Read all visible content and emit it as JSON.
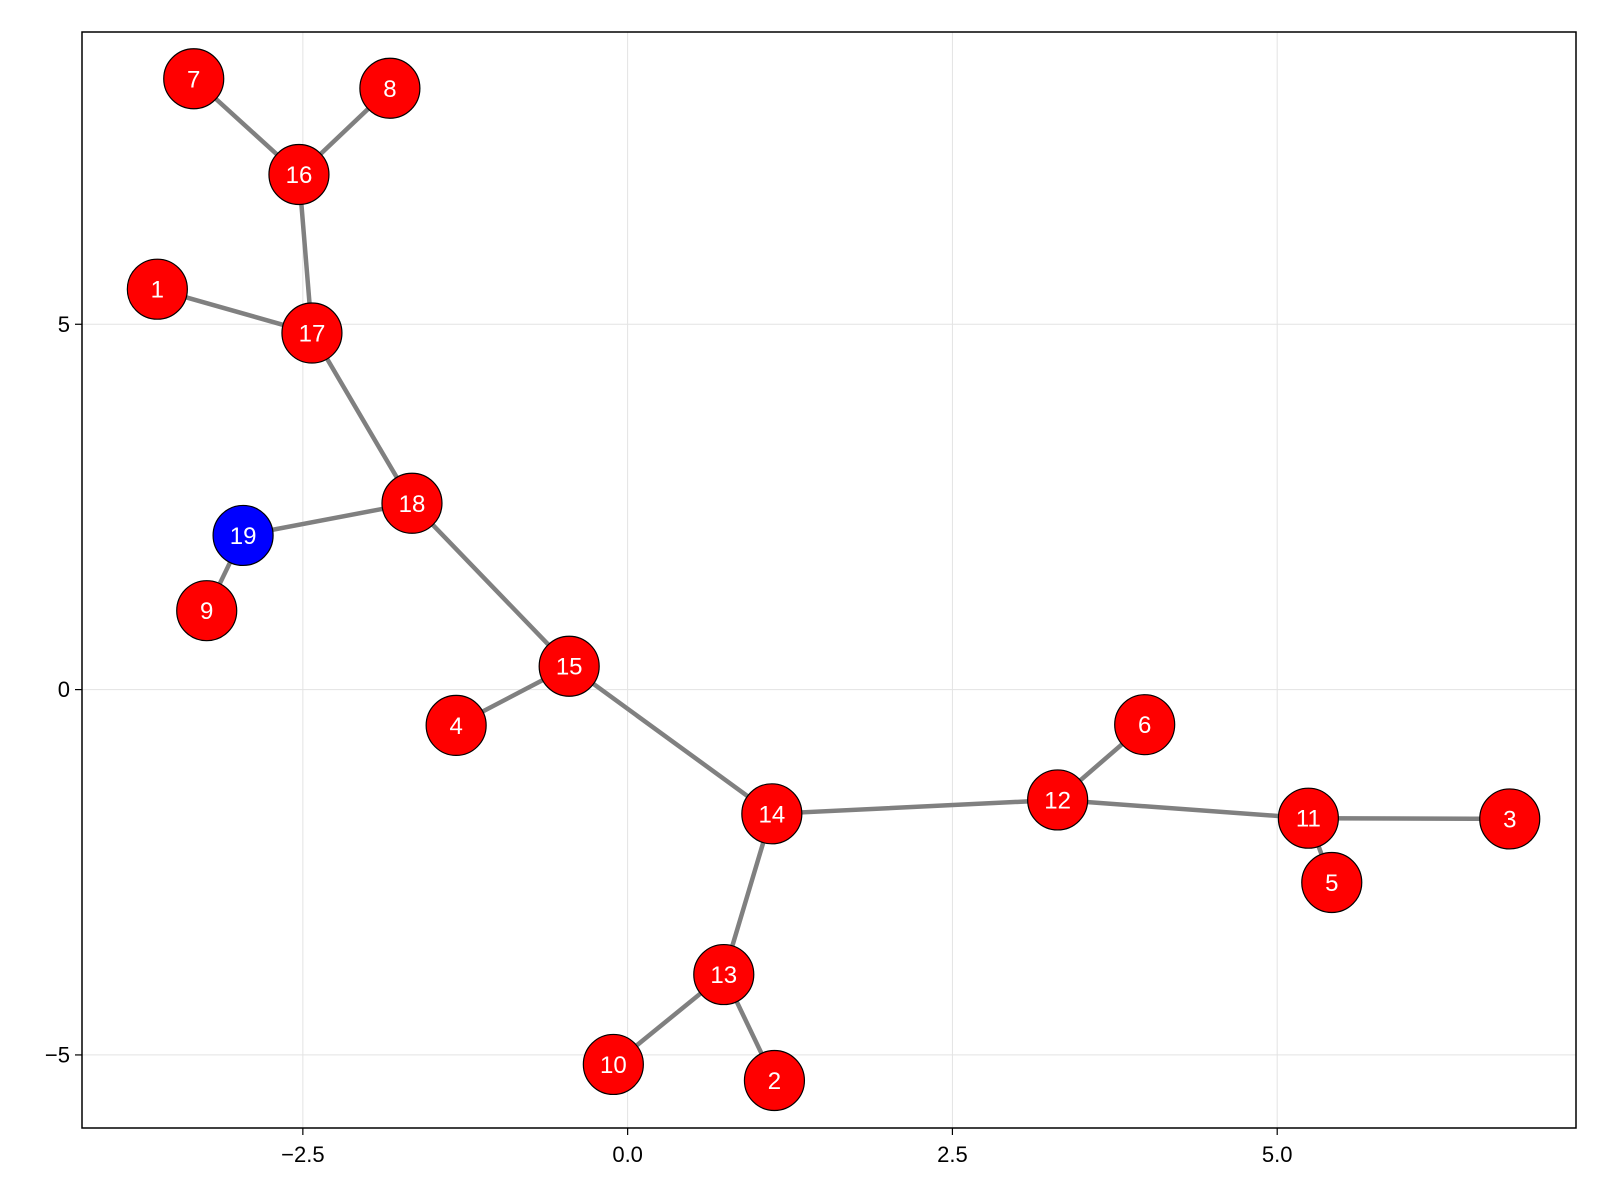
{
  "chart_data": {
    "type": "graph",
    "x_range": [
      -4.2,
      7.3
    ],
    "y_range": [
      -6.0,
      9.0
    ],
    "x_ticks": [
      {
        "value": -2.5,
        "label": "−2.5"
      },
      {
        "value": 0.0,
        "label": "0.0"
      },
      {
        "value": 2.5,
        "label": "2.5"
      },
      {
        "value": 5.0,
        "label": "5.0"
      }
    ],
    "y_ticks": [
      {
        "value": 5,
        "label": "5"
      },
      {
        "value": 0,
        "label": "0"
      },
      {
        "value": -5,
        "label": "−5"
      }
    ],
    "grid": true,
    "colors": {
      "node_default": "#ff0000",
      "node_highlight": "#0000ff",
      "edge": "#808080",
      "label": "#ffffff"
    },
    "nodes": [
      {
        "id": "1",
        "label": "1",
        "x": -3.62,
        "y": 5.48
      },
      {
        "id": "2",
        "label": "2",
        "x": 1.13,
        "y": -5.35
      },
      {
        "id": "3",
        "label": "3",
        "x": 6.79,
        "y": -1.77
      },
      {
        "id": "4",
        "label": "4",
        "x": -1.32,
        "y": -0.49
      },
      {
        "id": "5",
        "label": "5",
        "x": 5.42,
        "y": -2.64
      },
      {
        "id": "6",
        "label": "6",
        "x": 3.98,
        "y": -0.48
      },
      {
        "id": "7",
        "label": "7",
        "x": -3.34,
        "y": 8.36
      },
      {
        "id": "8",
        "label": "8",
        "x": -1.83,
        "y": 8.23
      },
      {
        "id": "9",
        "label": "9",
        "x": -3.24,
        "y": 1.08
      },
      {
        "id": "10",
        "label": "10",
        "x": -0.11,
        "y": -5.13
      },
      {
        "id": "11",
        "label": "11",
        "x": 5.24,
        "y": -1.76
      },
      {
        "id": "12",
        "label": "12",
        "x": 3.31,
        "y": -1.51
      },
      {
        "id": "13",
        "label": "13",
        "x": 0.74,
        "y": -3.9
      },
      {
        "id": "14",
        "label": "14",
        "x": 1.11,
        "y": -1.7
      },
      {
        "id": "15",
        "label": "15",
        "x": -0.45,
        "y": 0.32
      },
      {
        "id": "16",
        "label": "16",
        "x": -2.53,
        "y": 7.05
      },
      {
        "id": "17",
        "label": "17",
        "x": -2.43,
        "y": 4.88
      },
      {
        "id": "18",
        "label": "18",
        "x": -1.66,
        "y": 2.55
      },
      {
        "id": "19",
        "label": "19",
        "x": -2.96,
        "y": 2.11,
        "highlight": true
      }
    ],
    "edges": [
      [
        "7",
        "16"
      ],
      [
        "8",
        "16"
      ],
      [
        "16",
        "17"
      ],
      [
        "1",
        "17"
      ],
      [
        "17",
        "18"
      ],
      [
        "18",
        "19"
      ],
      [
        "19",
        "9"
      ],
      [
        "18",
        "15"
      ],
      [
        "15",
        "4"
      ],
      [
        "15",
        "14"
      ],
      [
        "14",
        "13"
      ],
      [
        "13",
        "10"
      ],
      [
        "13",
        "2"
      ],
      [
        "14",
        "12"
      ],
      [
        "12",
        "6"
      ],
      [
        "12",
        "11"
      ],
      [
        "11",
        "5"
      ],
      [
        "11",
        "3"
      ]
    ]
  }
}
